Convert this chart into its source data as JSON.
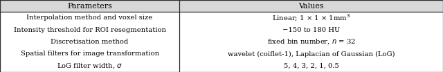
{
  "title_row": [
    "Parameters",
    "Values"
  ],
  "row_texts_left": [
    "Interpolation method and voxel size",
    "Intensity threshold for ROI resegmentation",
    "Discretisation method",
    "Spatial filters for image transformation",
    "LoG filter width, $\\sigma$"
  ],
  "row_texts_right": [
    "Linear; 1 × 1 × 1mm$^3$",
    "−150 to 180 HU",
    "fixed bin number, $n$ = 32",
    "wavelet (coiflet-1), Laplacian of Gaussian (LoG)",
    "5, 4, 3, 2, 1, 0.5"
  ],
  "col_split": 0.405,
  "background_color": "#ffffff",
  "border_color": "#2b2b2b",
  "header_bg": "#d8d8d8",
  "fontsize": 7.2,
  "header_fontsize": 8.0,
  "n_rows": 5
}
